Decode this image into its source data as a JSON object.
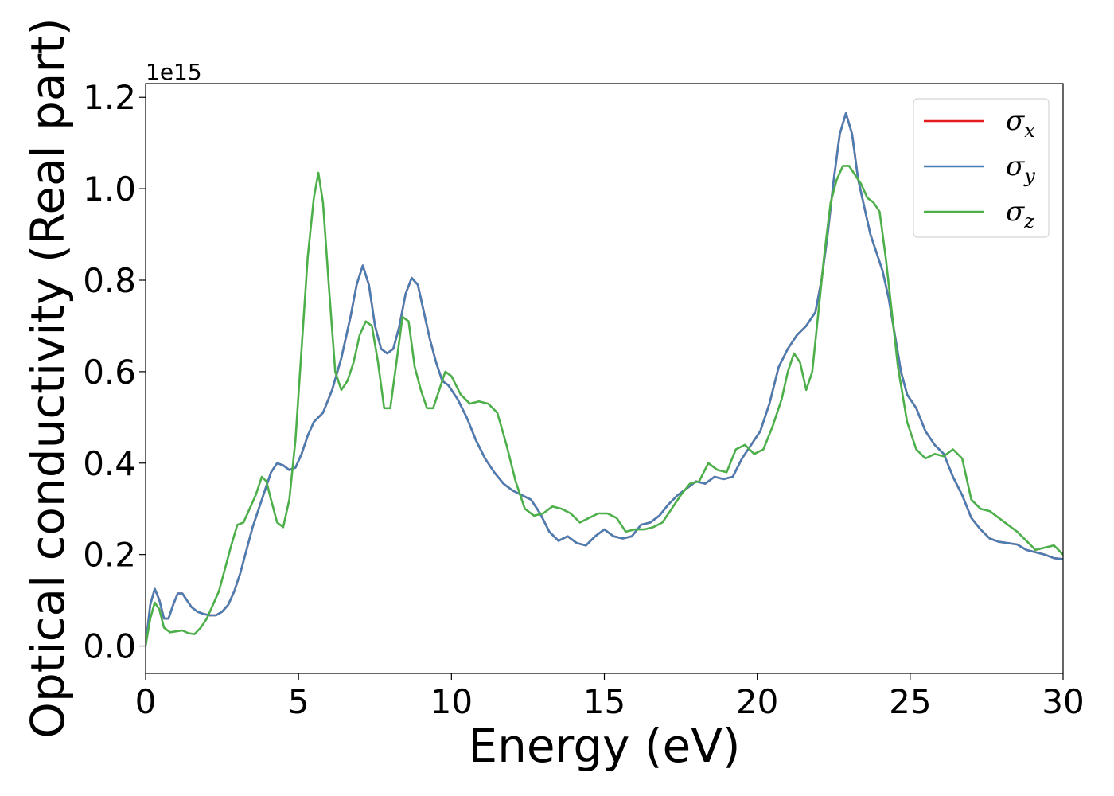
{
  "chart_data": {
    "type": "line",
    "xlabel": "Energy (eV)",
    "ylabel": "Optical conductivity (Real part)",
    "y_offset_label": "1e15",
    "xlim": [
      0,
      30
    ],
    "ylim": [
      -0.06,
      1.23
    ],
    "y_scale": 1000000000000000.0,
    "x_ticks": [
      0,
      5,
      10,
      15,
      20,
      25,
      30
    ],
    "x_tick_labels": [
      "0",
      "5",
      "10",
      "15",
      "20",
      "25",
      "30"
    ],
    "y_ticks": [
      0.0,
      0.2,
      0.4,
      0.6,
      0.8,
      1.0,
      1.2
    ],
    "y_tick_labels": [
      "0.0",
      "0.2",
      "0.4",
      "0.6",
      "0.8",
      "1.0",
      "1.2"
    ],
    "grid": false,
    "legend_position": "top-right",
    "series": [
      {
        "name": "σx",
        "symbol": "σ",
        "subscript": "x",
        "color": "#e41a1c",
        "x": [
          0,
          0.15,
          0.3,
          0.45,
          0.6,
          0.75,
          0.9,
          1.05,
          1.2,
          1.35,
          1.5,
          1.7,
          1.9,
          2.1,
          2.3,
          2.5,
          2.7,
          2.9,
          3.1,
          3.3,
          3.5,
          3.7,
          3.9,
          4.1,
          4.3,
          4.5,
          4.7,
          4.9,
          5.1,
          5.3,
          5.5,
          5.8,
          6.1,
          6.4,
          6.7,
          6.9,
          7.1,
          7.3,
          7.5,
          7.7,
          7.9,
          8.1,
          8.3,
          8.5,
          8.7,
          8.9,
          9.1,
          9.3,
          9.5,
          9.7,
          9.9,
          10.2,
          10.5,
          10.8,
          11.1,
          11.4,
          11.7,
          12.0,
          12.3,
          12.6,
          12.9,
          13.2,
          13.5,
          13.8,
          14.1,
          14.4,
          14.7,
          15.0,
          15.3,
          15.6,
          15.9,
          16.2,
          16.5,
          16.8,
          17.1,
          17.4,
          17.7,
          18.0,
          18.3,
          18.6,
          18.9,
          19.2,
          19.5,
          19.8,
          20.1,
          20.4,
          20.7,
          21.0,
          21.3,
          21.6,
          21.9,
          22.1,
          22.3,
          22.5,
          22.7,
          22.9,
          23.1,
          23.3,
          23.5,
          23.7,
          23.9,
          24.1,
          24.3,
          24.5,
          24.7,
          24.9,
          25.2,
          25.5,
          25.8,
          26.1,
          26.4,
          26.7,
          27.0,
          27.3,
          27.6,
          27.9,
          28.2,
          28.5,
          28.8,
          29.1,
          29.4,
          29.7,
          30.0
        ],
        "y": [
          0.0,
          0.09,
          0.125,
          0.1,
          0.06,
          0.06,
          0.09,
          0.115,
          0.115,
          0.1,
          0.085,
          0.075,
          0.07,
          0.067,
          0.067,
          0.075,
          0.09,
          0.12,
          0.16,
          0.21,
          0.26,
          0.3,
          0.34,
          0.38,
          0.4,
          0.395,
          0.385,
          0.39,
          0.42,
          0.46,
          0.49,
          0.51,
          0.56,
          0.63,
          0.72,
          0.79,
          0.832,
          0.79,
          0.7,
          0.65,
          0.64,
          0.65,
          0.7,
          0.77,
          0.805,
          0.79,
          0.73,
          0.67,
          0.62,
          0.58,
          0.57,
          0.54,
          0.5,
          0.45,
          0.41,
          0.38,
          0.355,
          0.34,
          0.33,
          0.32,
          0.29,
          0.25,
          0.23,
          0.24,
          0.225,
          0.22,
          0.24,
          0.255,
          0.24,
          0.235,
          0.24,
          0.265,
          0.27,
          0.285,
          0.31,
          0.33,
          0.345,
          0.36,
          0.355,
          0.37,
          0.365,
          0.37,
          0.41,
          0.44,
          0.47,
          0.53,
          0.61,
          0.65,
          0.68,
          0.7,
          0.73,
          0.8,
          0.9,
          1.02,
          1.12,
          1.165,
          1.12,
          1.02,
          0.96,
          0.9,
          0.86,
          0.82,
          0.76,
          0.68,
          0.6,
          0.55,
          0.52,
          0.47,
          0.44,
          0.42,
          0.37,
          0.33,
          0.28,
          0.255,
          0.235,
          0.228,
          0.225,
          0.222,
          0.21,
          0.205,
          0.2,
          0.192,
          0.19
        ]
      },
      {
        "name": "σy",
        "symbol": "σ",
        "subscript": "y",
        "color": "#4a7eb3",
        "x": [
          0,
          0.15,
          0.3,
          0.45,
          0.6,
          0.75,
          0.9,
          1.05,
          1.2,
          1.35,
          1.5,
          1.7,
          1.9,
          2.1,
          2.3,
          2.5,
          2.7,
          2.9,
          3.1,
          3.3,
          3.5,
          3.7,
          3.9,
          4.1,
          4.3,
          4.5,
          4.7,
          4.9,
          5.1,
          5.3,
          5.5,
          5.8,
          6.1,
          6.4,
          6.7,
          6.9,
          7.1,
          7.3,
          7.5,
          7.7,
          7.9,
          8.1,
          8.3,
          8.5,
          8.7,
          8.9,
          9.1,
          9.3,
          9.5,
          9.7,
          9.9,
          10.2,
          10.5,
          10.8,
          11.1,
          11.4,
          11.7,
          12.0,
          12.3,
          12.6,
          12.9,
          13.2,
          13.5,
          13.8,
          14.1,
          14.4,
          14.7,
          15.0,
          15.3,
          15.6,
          15.9,
          16.2,
          16.5,
          16.8,
          17.1,
          17.4,
          17.7,
          18.0,
          18.3,
          18.6,
          18.9,
          19.2,
          19.5,
          19.8,
          20.1,
          20.4,
          20.7,
          21.0,
          21.3,
          21.6,
          21.9,
          22.1,
          22.3,
          22.5,
          22.7,
          22.9,
          23.1,
          23.3,
          23.5,
          23.7,
          23.9,
          24.1,
          24.3,
          24.5,
          24.7,
          24.9,
          25.2,
          25.5,
          25.8,
          26.1,
          26.4,
          26.7,
          27.0,
          27.3,
          27.6,
          27.9,
          28.2,
          28.5,
          28.8,
          29.1,
          29.4,
          29.7,
          30.0
        ],
        "y": [
          0.0,
          0.09,
          0.125,
          0.1,
          0.06,
          0.06,
          0.09,
          0.115,
          0.115,
          0.1,
          0.085,
          0.075,
          0.07,
          0.067,
          0.067,
          0.075,
          0.09,
          0.12,
          0.16,
          0.21,
          0.26,
          0.3,
          0.34,
          0.38,
          0.4,
          0.395,
          0.385,
          0.39,
          0.42,
          0.46,
          0.49,
          0.51,
          0.56,
          0.63,
          0.72,
          0.79,
          0.832,
          0.79,
          0.7,
          0.65,
          0.64,
          0.65,
          0.7,
          0.77,
          0.805,
          0.79,
          0.73,
          0.67,
          0.62,
          0.58,
          0.57,
          0.54,
          0.5,
          0.45,
          0.41,
          0.38,
          0.355,
          0.34,
          0.33,
          0.32,
          0.29,
          0.25,
          0.23,
          0.24,
          0.225,
          0.22,
          0.24,
          0.255,
          0.24,
          0.235,
          0.24,
          0.265,
          0.27,
          0.285,
          0.31,
          0.33,
          0.345,
          0.36,
          0.355,
          0.37,
          0.365,
          0.37,
          0.41,
          0.44,
          0.47,
          0.53,
          0.61,
          0.65,
          0.68,
          0.7,
          0.73,
          0.8,
          0.9,
          1.02,
          1.12,
          1.165,
          1.12,
          1.02,
          0.96,
          0.9,
          0.86,
          0.82,
          0.76,
          0.68,
          0.6,
          0.55,
          0.52,
          0.47,
          0.44,
          0.42,
          0.37,
          0.33,
          0.28,
          0.255,
          0.235,
          0.228,
          0.225,
          0.222,
          0.21,
          0.205,
          0.2,
          0.192,
          0.19
        ]
      },
      {
        "name": "σz",
        "symbol": "σ",
        "subscript": "z",
        "color": "#4daf4a",
        "x": [
          0,
          0.15,
          0.3,
          0.45,
          0.6,
          0.8,
          1.0,
          1.2,
          1.4,
          1.6,
          1.8,
          2.0,
          2.2,
          2.4,
          2.6,
          2.8,
          3.0,
          3.2,
          3.4,
          3.6,
          3.8,
          3.95,
          4.1,
          4.3,
          4.5,
          4.7,
          4.9,
          5.1,
          5.3,
          5.5,
          5.65,
          5.8,
          6.0,
          6.2,
          6.4,
          6.6,
          6.8,
          7.0,
          7.2,
          7.4,
          7.6,
          7.8,
          8.0,
          8.2,
          8.4,
          8.6,
          8.8,
          9.0,
          9.2,
          9.4,
          9.6,
          9.8,
          10.0,
          10.3,
          10.6,
          10.9,
          11.2,
          11.5,
          11.8,
          12.1,
          12.4,
          12.7,
          13.0,
          13.3,
          13.6,
          13.9,
          14.2,
          14.5,
          14.8,
          15.1,
          15.4,
          15.7,
          16.0,
          16.3,
          16.6,
          16.9,
          17.2,
          17.5,
          17.8,
          18.1,
          18.4,
          18.7,
          19.0,
          19.3,
          19.6,
          19.9,
          20.2,
          20.5,
          20.8,
          21.0,
          21.2,
          21.4,
          21.6,
          21.8,
          22.0,
          22.2,
          22.4,
          22.6,
          22.8,
          23.0,
          23.2,
          23.4,
          23.6,
          23.8,
          24.0,
          24.2,
          24.4,
          24.6,
          24.9,
          25.2,
          25.5,
          25.8,
          26.1,
          26.4,
          26.7,
          27.0,
          27.3,
          27.6,
          27.9,
          28.2,
          28.5,
          28.8,
          29.1,
          29.4,
          29.7,
          30.0
        ],
        "y": [
          0.0,
          0.06,
          0.095,
          0.08,
          0.04,
          0.03,
          0.032,
          0.034,
          0.028,
          0.026,
          0.04,
          0.06,
          0.09,
          0.12,
          0.17,
          0.22,
          0.265,
          0.27,
          0.3,
          0.33,
          0.37,
          0.36,
          0.32,
          0.27,
          0.26,
          0.32,
          0.45,
          0.65,
          0.85,
          0.98,
          1.035,
          0.97,
          0.78,
          0.6,
          0.56,
          0.58,
          0.62,
          0.68,
          0.71,
          0.7,
          0.62,
          0.52,
          0.52,
          0.62,
          0.72,
          0.71,
          0.61,
          0.56,
          0.52,
          0.52,
          0.56,
          0.6,
          0.59,
          0.55,
          0.53,
          0.535,
          0.53,
          0.51,
          0.44,
          0.36,
          0.3,
          0.285,
          0.29,
          0.305,
          0.3,
          0.29,
          0.27,
          0.28,
          0.29,
          0.29,
          0.28,
          0.25,
          0.255,
          0.255,
          0.26,
          0.27,
          0.3,
          0.33,
          0.355,
          0.36,
          0.4,
          0.385,
          0.38,
          0.43,
          0.44,
          0.42,
          0.43,
          0.48,
          0.54,
          0.6,
          0.64,
          0.62,
          0.56,
          0.6,
          0.73,
          0.86,
          0.97,
          1.02,
          1.05,
          1.05,
          1.03,
          1.01,
          0.98,
          0.97,
          0.95,
          0.85,
          0.73,
          0.61,
          0.49,
          0.43,
          0.41,
          0.42,
          0.415,
          0.43,
          0.41,
          0.32,
          0.3,
          0.295,
          0.28,
          0.265,
          0.25,
          0.23,
          0.21,
          0.215,
          0.22,
          0.2
        ]
      }
    ]
  }
}
